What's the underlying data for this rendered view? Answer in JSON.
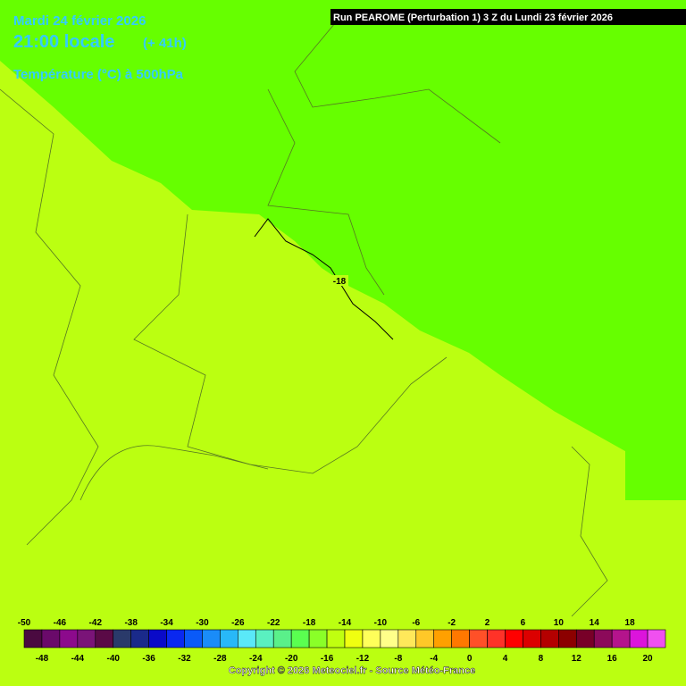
{
  "header": {
    "date": "Mardi 24 février 2026",
    "time": "21:00 locale",
    "lead": "(+ 41h)",
    "parameter": "Température (°C) à 500hPa"
  },
  "run_banner": "Run PEAROME (Perturbation 1) 3 Z du Lundi 23 février 2026",
  "map": {
    "contour_label": "-18"
  },
  "colorbar": {
    "values": [
      -50,
      -48,
      -46,
      -44,
      -42,
      -40,
      -38,
      -36,
      -34,
      -32,
      -30,
      -28,
      -26,
      -24,
      -22,
      -20,
      -18,
      -16,
      -14,
      -12,
      -10,
      -8,
      -6,
      -4,
      -2,
      0,
      2,
      4,
      6,
      8,
      10,
      12,
      14,
      16,
      18,
      20
    ],
    "colors": [
      "#4a0a40",
      "#6a0a6a",
      "#8c0a8c",
      "#7a1478",
      "#5a0a46",
      "#2a3a6a",
      "#1a2a8a",
      "#0a0ac8",
      "#0a28f0",
      "#0a5af8",
      "#1a8cf8",
      "#28b8f8",
      "#5ae8f8",
      "#5af0c0",
      "#5af08a",
      "#5aff50",
      "#8aff28",
      "#c0ff10",
      "#f0ff10",
      "#ffff5a",
      "#ffff8a",
      "#ffe85a",
      "#ffc828",
      "#ffa000",
      "#ff7800",
      "#ff5028",
      "#ff3228",
      "#ff0000",
      "#dc0000",
      "#b40000",
      "#8c0000",
      "#780028",
      "#8c0a5a",
      "#b4148c",
      "#dc14dc",
      "#f050f0"
    ]
  },
  "copyright": "Copyright © 2026 Meteociel.fr - Source Météo-France"
}
